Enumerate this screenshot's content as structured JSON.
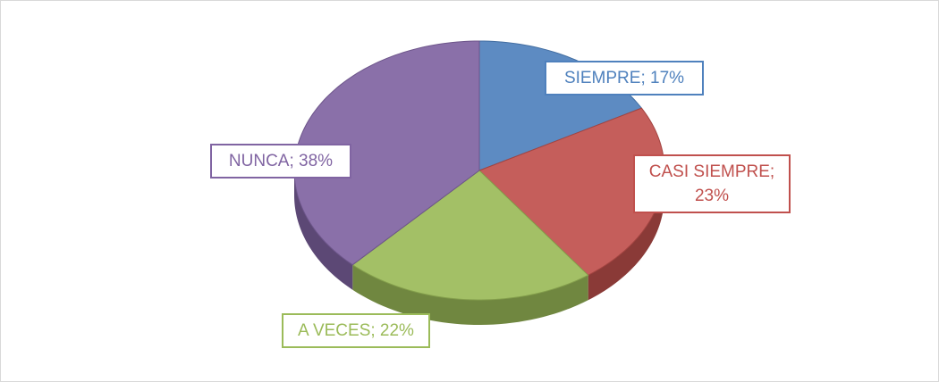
{
  "chart_data": {
    "type": "pie",
    "values": [
      17,
      23,
      22,
      38
    ],
    "value_labels": [
      "SIEMPRE; 17%",
      "CASI SIEMPRE; 23%",
      "A VECES; 22%",
      "NUNCA; 38%"
    ],
    "colors": [
      "#4f81bd",
      "#c0504d",
      "#9bbb59",
      "#8064a2"
    ]
  }
}
